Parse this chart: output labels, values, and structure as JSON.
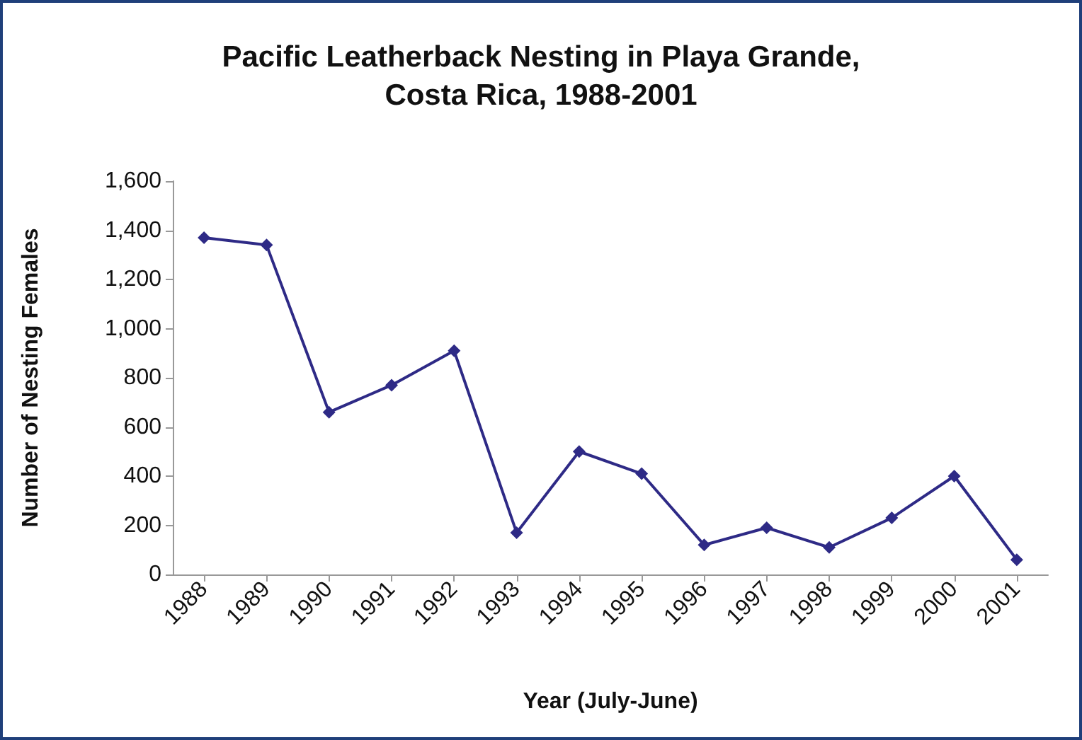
{
  "chart_data": {
    "type": "line",
    "title": "Pacific Leatherback Nesting in Playa Grande,\nCosta Rica, 1988-2001",
    "xlabel": "Year (July-June)",
    "ylabel": "Number of Nesting Females",
    "categories": [
      "1988",
      "1989",
      "1990",
      "1991",
      "1992",
      "1993",
      "1994",
      "1995",
      "1996",
      "1997",
      "1998",
      "1999",
      "2000",
      "2001"
    ],
    "series": [
      {
        "color": "#2e2a86",
        "values": [
          1370,
          1340,
          660,
          770,
          910,
          170,
          500,
          410,
          120,
          190,
          110,
          230,
          400,
          60
        ]
      }
    ],
    "ylim": [
      0,
      1600
    ],
    "yticks": [
      0,
      200,
      400,
      600,
      800,
      {
        "value": 1000,
        "label": "1,000"
      },
      {
        "value": 1200,
        "label": "1,200"
      },
      {
        "value": 1400,
        "label": "1,400"
      },
      {
        "value": 1600,
        "label": "1,600"
      }
    ],
    "grid": false,
    "marker": "diamond",
    "line_style": "solid"
  }
}
